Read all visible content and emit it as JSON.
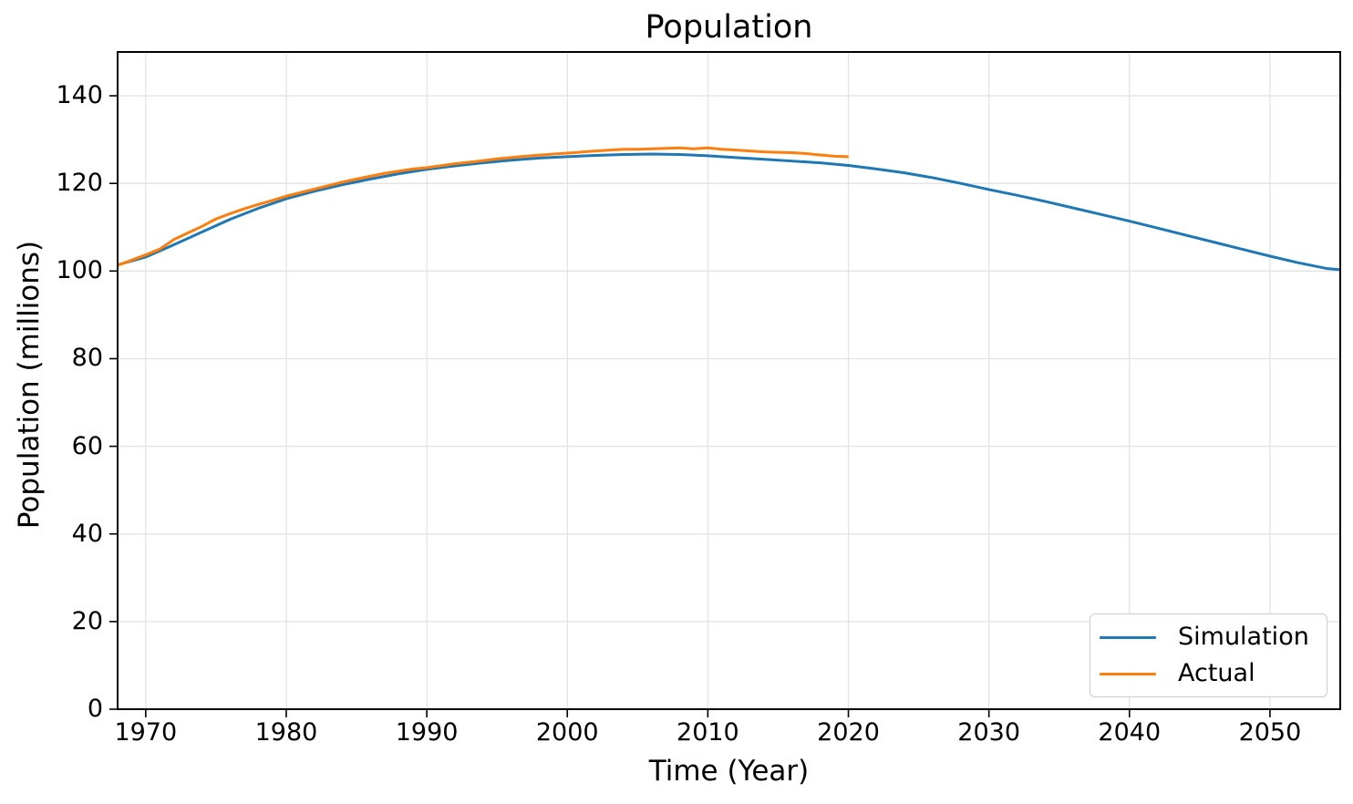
{
  "title": "Population",
  "chart_data": {
    "type": "line",
    "title": "Population",
    "xlabel": "Time (Year)",
    "ylabel": "Population (millions)",
    "xlim": [
      1968,
      2055
    ],
    "ylim": [
      0,
      150
    ],
    "xticks": [
      "1970",
      "1980",
      "1990",
      "2000",
      "2010",
      "2020",
      "2030",
      "2040",
      "2050"
    ],
    "xtick_values": [
      1970,
      1980,
      1990,
      2000,
      2010,
      2020,
      2030,
      2040,
      2050
    ],
    "yticks": [
      "0",
      "20",
      "40",
      "60",
      "80",
      "100",
      "120",
      "140"
    ],
    "ytick_values": [
      0,
      20,
      40,
      60,
      80,
      100,
      120,
      140
    ],
    "grid": true,
    "legend_position": "lower right",
    "colors": {
      "simulation": "#1f77b4",
      "actual": "#ff7f0e",
      "grid": "#e3e3e3",
      "spine": "#000000",
      "background": "#ffffff"
    },
    "series": [
      {
        "name": "Simulation",
        "color": "#1f77b4",
        "x": [
          1968,
          1970,
          1972,
          1974,
          1976,
          1978,
          1980,
          1982,
          1984,
          1986,
          1988,
          1990,
          1992,
          1994,
          1996,
          1998,
          2000,
          2002,
          2004,
          2006,
          2008,
          2010,
          2012,
          2014,
          2016,
          2018,
          2020,
          2022,
          2024,
          2026,
          2028,
          2030,
          2032,
          2034,
          2036,
          2038,
          2040,
          2042,
          2044,
          2046,
          2048,
          2050,
          2052,
          2054,
          2055
        ],
        "y": [
          101.4,
          103.2,
          106.0,
          108.9,
          111.8,
          114.3,
          116.5,
          118.2,
          119.7,
          121.0,
          122.2,
          123.2,
          124.0,
          124.7,
          125.3,
          125.8,
          126.1,
          126.4,
          126.6,
          126.7,
          126.6,
          126.3,
          125.9,
          125.5,
          125.1,
          124.7,
          124.1,
          123.3,
          122.4,
          121.3,
          120.0,
          118.6,
          117.3,
          115.9,
          114.4,
          112.9,
          111.4,
          109.8,
          108.2,
          106.6,
          105.0,
          103.4,
          101.9,
          100.6,
          100.3
        ]
      },
      {
        "name": "Actual",
        "color": "#ff7f0e",
        "x": [
          1968,
          1969,
          1970,
          1971,
          1972,
          1973,
          1974,
          1975,
          1976,
          1977,
          1978,
          1979,
          1980,
          1982,
          1984,
          1985,
          1987,
          1989,
          1990,
          1992,
          1994,
          1995,
          1997,
          1999,
          2000,
          2002,
          2004,
          2005,
          2007,
          2008,
          2009,
          2010,
          2011,
          2012,
          2013,
          2014,
          2015,
          2016,
          2017,
          2018,
          2019,
          2020
        ],
        "y": [
          101.3,
          102.5,
          103.7,
          105.0,
          107.2,
          108.7,
          110.2,
          111.9,
          113.1,
          114.2,
          115.2,
          116.1,
          117.1,
          118.7,
          120.3,
          121.0,
          122.3,
          123.3,
          123.6,
          124.5,
          125.2,
          125.6,
          126.2,
          126.7,
          126.9,
          127.4,
          127.8,
          127.8,
          128.0,
          128.1,
          127.9,
          128.1,
          127.8,
          127.6,
          127.4,
          127.2,
          127.1,
          127.0,
          126.8,
          126.5,
          126.2,
          126.1
        ]
      }
    ]
  },
  "legend": {
    "items": [
      {
        "label": "Simulation"
      },
      {
        "label": "Actual"
      }
    ]
  }
}
